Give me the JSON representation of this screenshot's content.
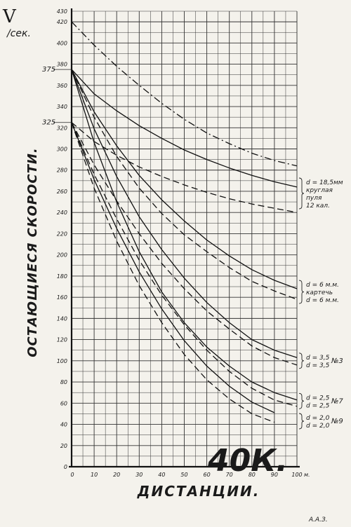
{
  "chart_data": {
    "type": "line",
    "title": "",
    "ylabel": "ОСТАЮЩИЕСЯ СКОРОСТИ.",
    "xlabel": "ДИСТАНЦИИ.",
    "y_symbol": "V",
    "y_unit": "/сек.",
    "x_unit": "м.",
    "xlim": [
      0,
      100
    ],
    "ylim": [
      0,
      430
    ],
    "x_ticks": [
      10,
      20,
      30,
      40,
      50,
      60,
      70,
      80,
      90,
      100
    ],
    "y_ticks": [
      0,
      20,
      40,
      60,
      80,
      100,
      120,
      140,
      160,
      180,
      200,
      220,
      240,
      260,
      280,
      300,
      320,
      340,
      360,
      380,
      400,
      420,
      430
    ],
    "y_special_ticks": [
      325,
      375
    ],
    "grid": true,
    "big_label": "40К.",
    "signature": "А.А.З.",
    "annotations": [
      {
        "lines": [
          "d = 18,5мм",
          "круглая",
          "пуля",
          "12 кал."
        ],
        "y": 258
      },
      {
        "lines": [
          "d = 6 м.м.",
          "картечь",
          "d = 6 м.м."
        ],
        "y": 165
      },
      {
        "lines": [
          "d = 3,5",
          "d = 3,5"
        ],
        "y": 100,
        "number": "№3"
      },
      {
        "lines": [
          "d = 2,5",
          "d = 2,5"
        ],
        "y": 62,
        "number": "№7"
      },
      {
        "lines": [
          "d = 2,0",
          "d = 2,0"
        ],
        "y": 43,
        "number": "№9"
      }
    ],
    "series": [
      {
        "style": "dashdot",
        "x": [
          0,
          10,
          20,
          30,
          40,
          50,
          60,
          70,
          80,
          90,
          100
        ],
        "values": [
          420,
          398,
          378,
          360,
          343,
          328,
          315,
          305,
          296,
          289,
          284
        ]
      },
      {
        "style": "solid",
        "x": [
          0,
          10,
          20,
          30,
          40,
          50,
          60,
          70,
          80,
          90,
          100
        ],
        "values": [
          375,
          352,
          336,
          322,
          310,
          299,
          290,
          282,
          275,
          269,
          264
        ]
      },
      {
        "style": "dashed",
        "x": [
          0,
          10,
          20,
          30,
          40,
          50,
          60,
          70,
          80,
          90,
          100
        ],
        "values": [
          325,
          307,
          294,
          283,
          274,
          266,
          259,
          253,
          248,
          244,
          240
        ]
      },
      {
        "style": "solid",
        "x": [
          0,
          10,
          20,
          30,
          40,
          50,
          60,
          70,
          80,
          90,
          100
        ],
        "values": [
          375,
          335,
          303,
          275,
          252,
          232,
          214,
          199,
          186,
          176,
          168
        ]
      },
      {
        "style": "dashed",
        "x": [
          0,
          10,
          20,
          30,
          40,
          50,
          60,
          70,
          80,
          90,
          100
        ],
        "values": [
          375,
          330,
          293,
          263,
          239,
          219,
          203,
          188,
          175,
          166,
          158
        ]
      },
      {
        "style": "solid",
        "x": [
          0,
          10,
          20,
          30,
          40,
          50,
          60,
          70,
          80,
          90,
          100
        ],
        "values": [
          375,
          319,
          274,
          236,
          205,
          178,
          155,
          136,
          120,
          110,
          103
        ]
      },
      {
        "style": "dashed",
        "x": [
          0,
          10,
          20,
          30,
          40,
          50,
          60,
          70,
          80,
          90,
          100
        ],
        "values": [
          325,
          285,
          251,
          220,
          192,
          168,
          147,
          130,
          114,
          103,
          96
        ]
      },
      {
        "style": "solid",
        "x": [
          0,
          10,
          20,
          30,
          40,
          50,
          60,
          70,
          80,
          90,
          100
        ],
        "values": [
          375,
          306,
          250,
          203,
          165,
          136,
          113,
          95,
          80,
          70,
          63
        ]
      },
      {
        "style": "dashed",
        "x": [
          0,
          10,
          20,
          30,
          40,
          50,
          60,
          70,
          80,
          90,
          100
        ],
        "values": [
          325,
          276,
          234,
          195,
          162,
          134,
          110,
          90,
          74,
          63,
          57
        ]
      },
      {
        "style": "solid",
        "x": [
          0,
          10,
          20,
          30,
          40,
          50,
          60,
          70,
          80,
          90
        ],
        "values": [
          325,
          271,
          225,
          184,
          149,
          119,
          95,
          76,
          61,
          51
        ]
      },
      {
        "style": "dashed",
        "x": [
          0,
          10,
          20,
          30,
          40,
          50,
          60,
          70,
          80,
          90
        ],
        "values": [
          325,
          263,
          213,
          171,
          136,
          106,
          82,
          64,
          50,
          42
        ]
      }
    ]
  }
}
